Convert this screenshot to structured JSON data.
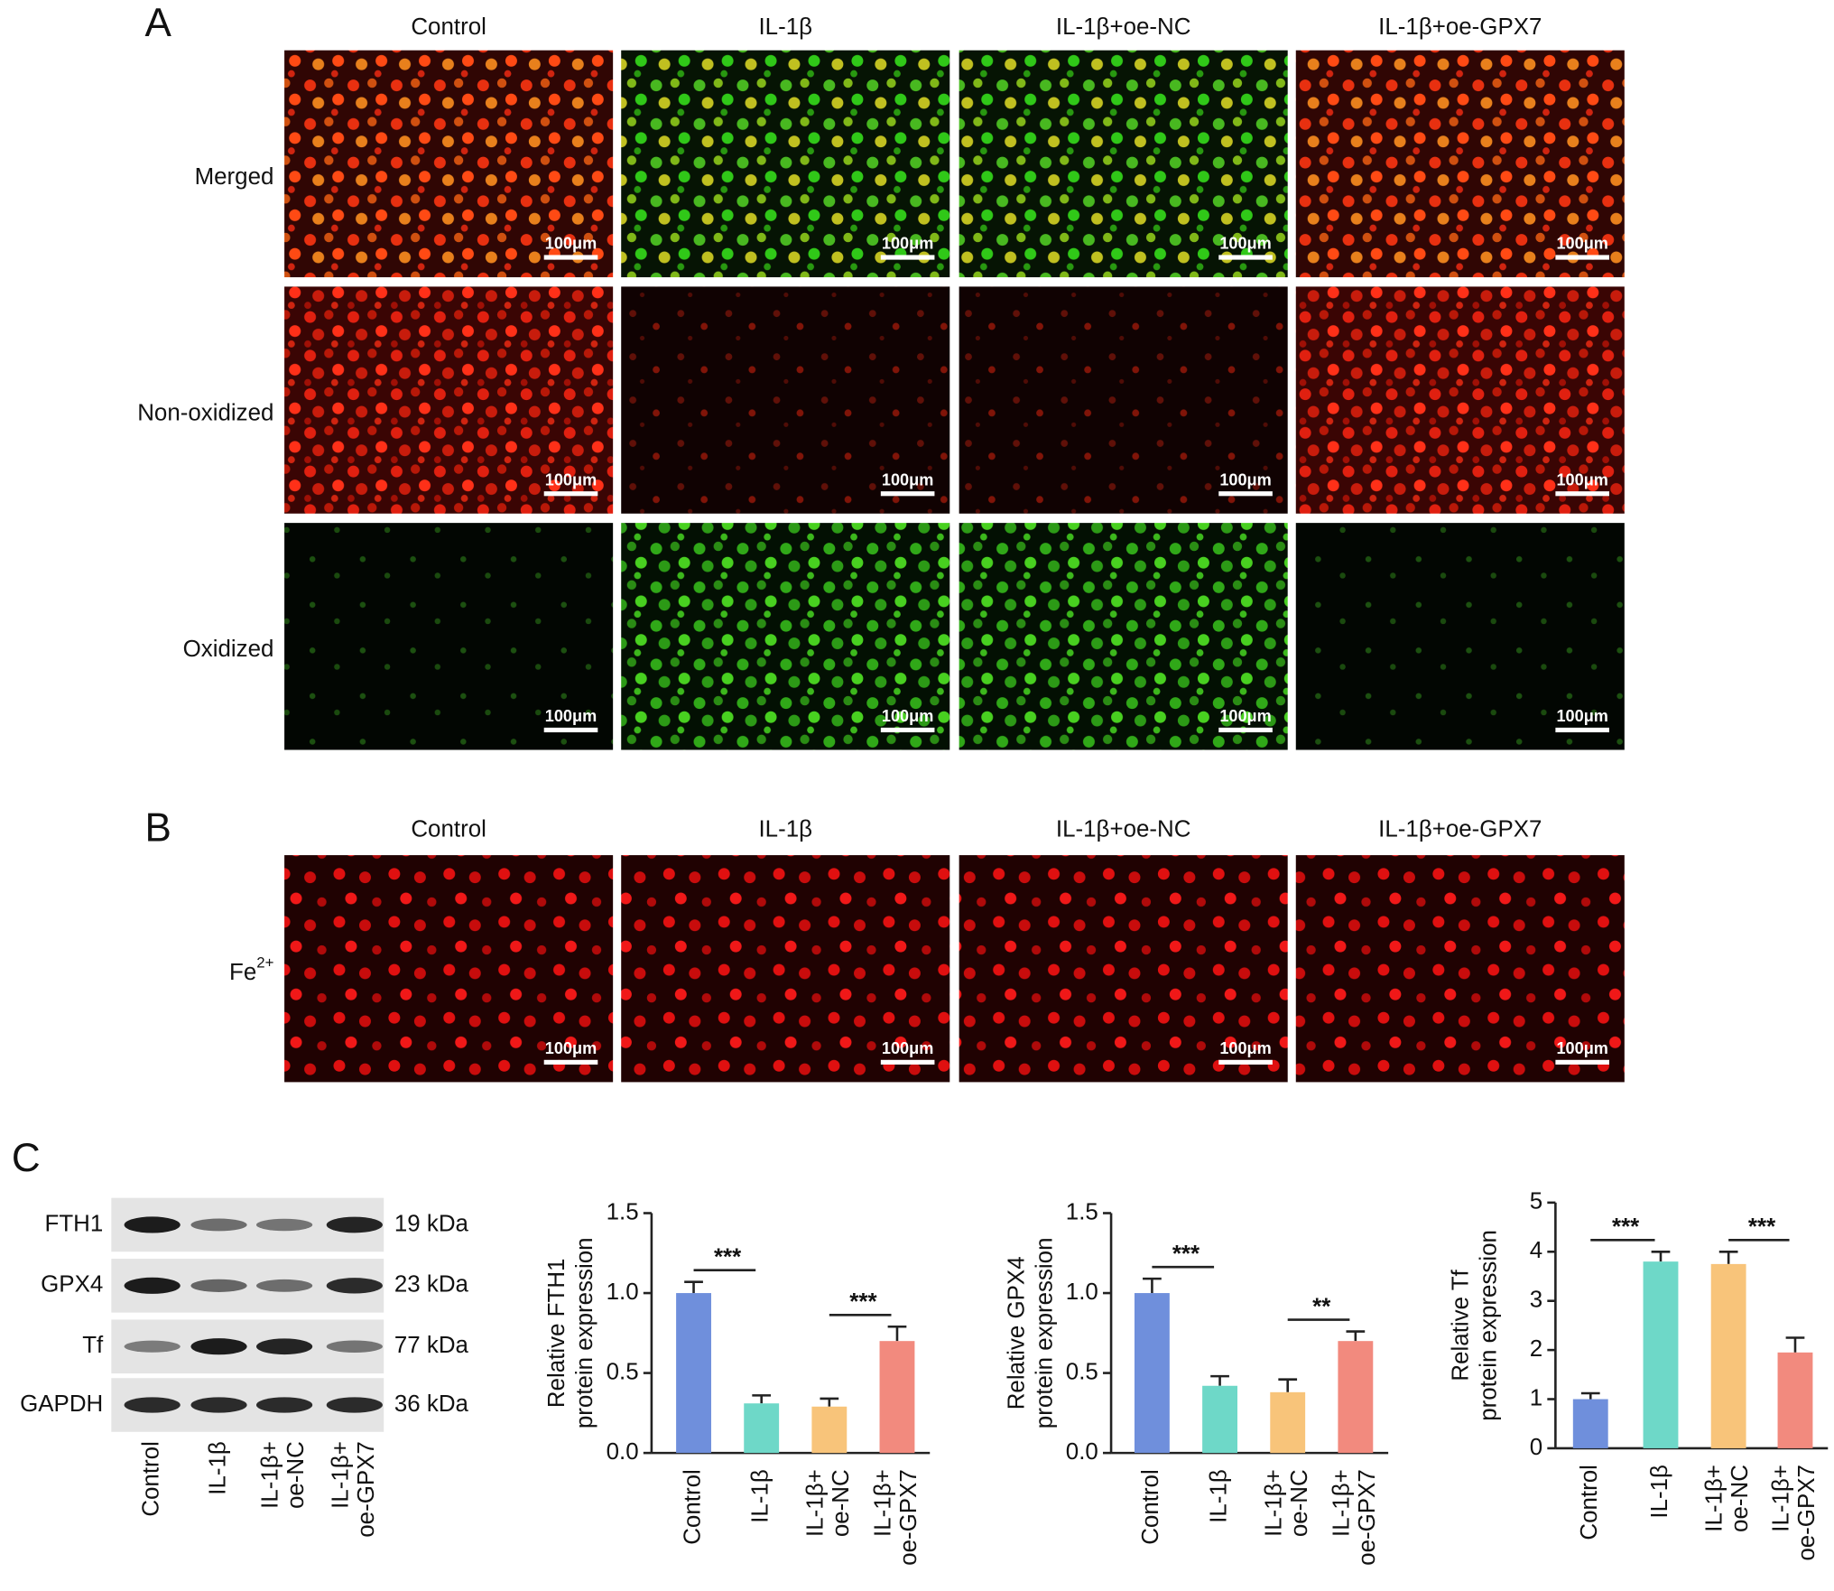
{
  "panel_a": {
    "label": "A",
    "columns": [
      "Control",
      "IL-1β",
      "IL-1β+oe-NC",
      "IL-1β+oe-GPX7"
    ],
    "rows": [
      "Merged",
      "Non-oxidized",
      "Oxidized"
    ],
    "scale_bar": "100μm"
  },
  "panel_b": {
    "label": "B",
    "columns": [
      "Control",
      "IL-1β",
      "IL-1β+oe-NC",
      "IL-1β+oe-GPX7"
    ],
    "row": {
      "text": "Fe",
      "superscript": "2+"
    },
    "scale_bar": "100μm"
  },
  "panel_c": {
    "label": "C",
    "blot": {
      "proteins": [
        "FTH1",
        "GPX4",
        "Tf",
        "GAPDH"
      ],
      "sizes": [
        "19 kDa",
        "23 kDa",
        "77 kDa",
        "36 kDa"
      ],
      "lanes": [
        [
          "Control"
        ],
        [
          "IL-1β"
        ],
        [
          "IL-1β+",
          "oe-NC"
        ],
        [
          "IL-1β+",
          "oe-GPX7"
        ]
      ]
    }
  },
  "chart_data": [
    {
      "type": "bar",
      "ylabel": [
        "Relative FTH1",
        "protein expression"
      ],
      "categories": [
        [
          "Control"
        ],
        [
          "IL-1β"
        ],
        [
          "IL-1β+",
          "oe-NC"
        ],
        [
          "IL-1β+",
          "oe-GPX7"
        ]
      ],
      "values": [
        1.0,
        0.31,
        0.29,
        0.7
      ],
      "errors": [
        0.07,
        0.05,
        0.05,
        0.09
      ],
      "colors": [
        "#6f8fdc",
        "#6ed8c8",
        "#f8c47a",
        "#f28a7e"
      ],
      "ylim": [
        0,
        1.5
      ],
      "yticks": [
        {
          "value": 0,
          "label": "0.0"
        },
        0.5,
        {
          "value": 1,
          "label": "1.0"
        },
        1.5
      ],
      "significance": [
        {
          "text": "***",
          "pair": [
            0,
            1
          ]
        },
        {
          "text": "***",
          "pair": [
            2,
            3
          ]
        }
      ]
    },
    {
      "type": "bar",
      "ylabel": [
        "Relative GPX4",
        "protein expression"
      ],
      "categories": [
        [
          "Control"
        ],
        [
          "IL-1β"
        ],
        [
          "IL-1β+",
          "oe-NC"
        ],
        [
          "IL-1β+",
          "oe-GPX7"
        ]
      ],
      "values": [
        1.0,
        0.42,
        0.38,
        0.7
      ],
      "errors": [
        0.09,
        0.06,
        0.08,
        0.06
      ],
      "colors": [
        "#6f8fdc",
        "#6ed8c8",
        "#f8c47a",
        "#f28a7e"
      ],
      "ylim": [
        0,
        1.5
      ],
      "yticks": [
        {
          "value": 0,
          "label": "0.0"
        },
        0.5,
        {
          "value": 1,
          "label": "1.0"
        },
        1.5
      ],
      "significance": [
        {
          "text": "***",
          "pair": [
            0,
            1
          ]
        },
        {
          "text": "**",
          "pair": [
            2,
            3
          ]
        }
      ]
    },
    {
      "type": "bar",
      "ylabel": [
        "Relative Tf",
        "protein expression"
      ],
      "categories": [
        [
          "Control"
        ],
        [
          "IL-1β"
        ],
        [
          "IL-1β+",
          "oe-NC"
        ],
        [
          "IL-1β+",
          "oe-GPX7"
        ]
      ],
      "values": [
        1.0,
        3.8,
        3.75,
        1.95
      ],
      "errors": [
        0.12,
        0.2,
        0.25,
        0.3
      ],
      "colors": [
        "#6f8fdc",
        "#6ed8c8",
        "#f8c47a",
        "#f28a7e"
      ],
      "ylim": [
        0,
        5
      ],
      "yticks": [
        0,
        1,
        2,
        3,
        4,
        5
      ],
      "significance": [
        {
          "text": "***",
          "pair": [
            0,
            1
          ]
        },
        {
          "text": "***",
          "pair": [
            2,
            3
          ]
        }
      ]
    }
  ]
}
